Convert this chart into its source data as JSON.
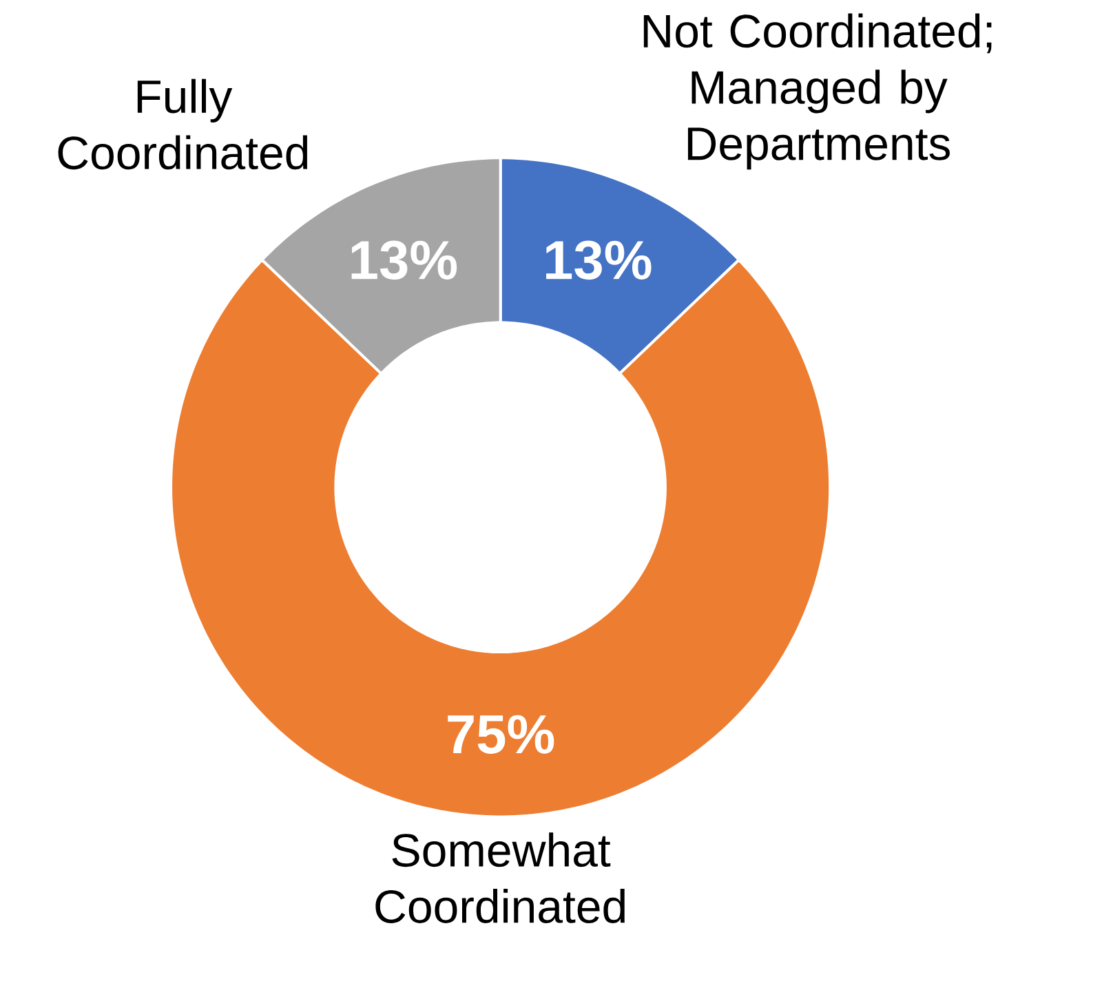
{
  "chart_data": {
    "type": "donut",
    "categories": [
      "Not Coordinated; Managed by Departments",
      "Somewhat Coordinated",
      "Fully Coordinated"
    ],
    "values": [
      13,
      75,
      13
    ],
    "value_labels": [
      "13%",
      "75%",
      "13%"
    ],
    "colors": [
      "#4472c4",
      "#ed7d31",
      "#a5a5a5"
    ]
  }
}
